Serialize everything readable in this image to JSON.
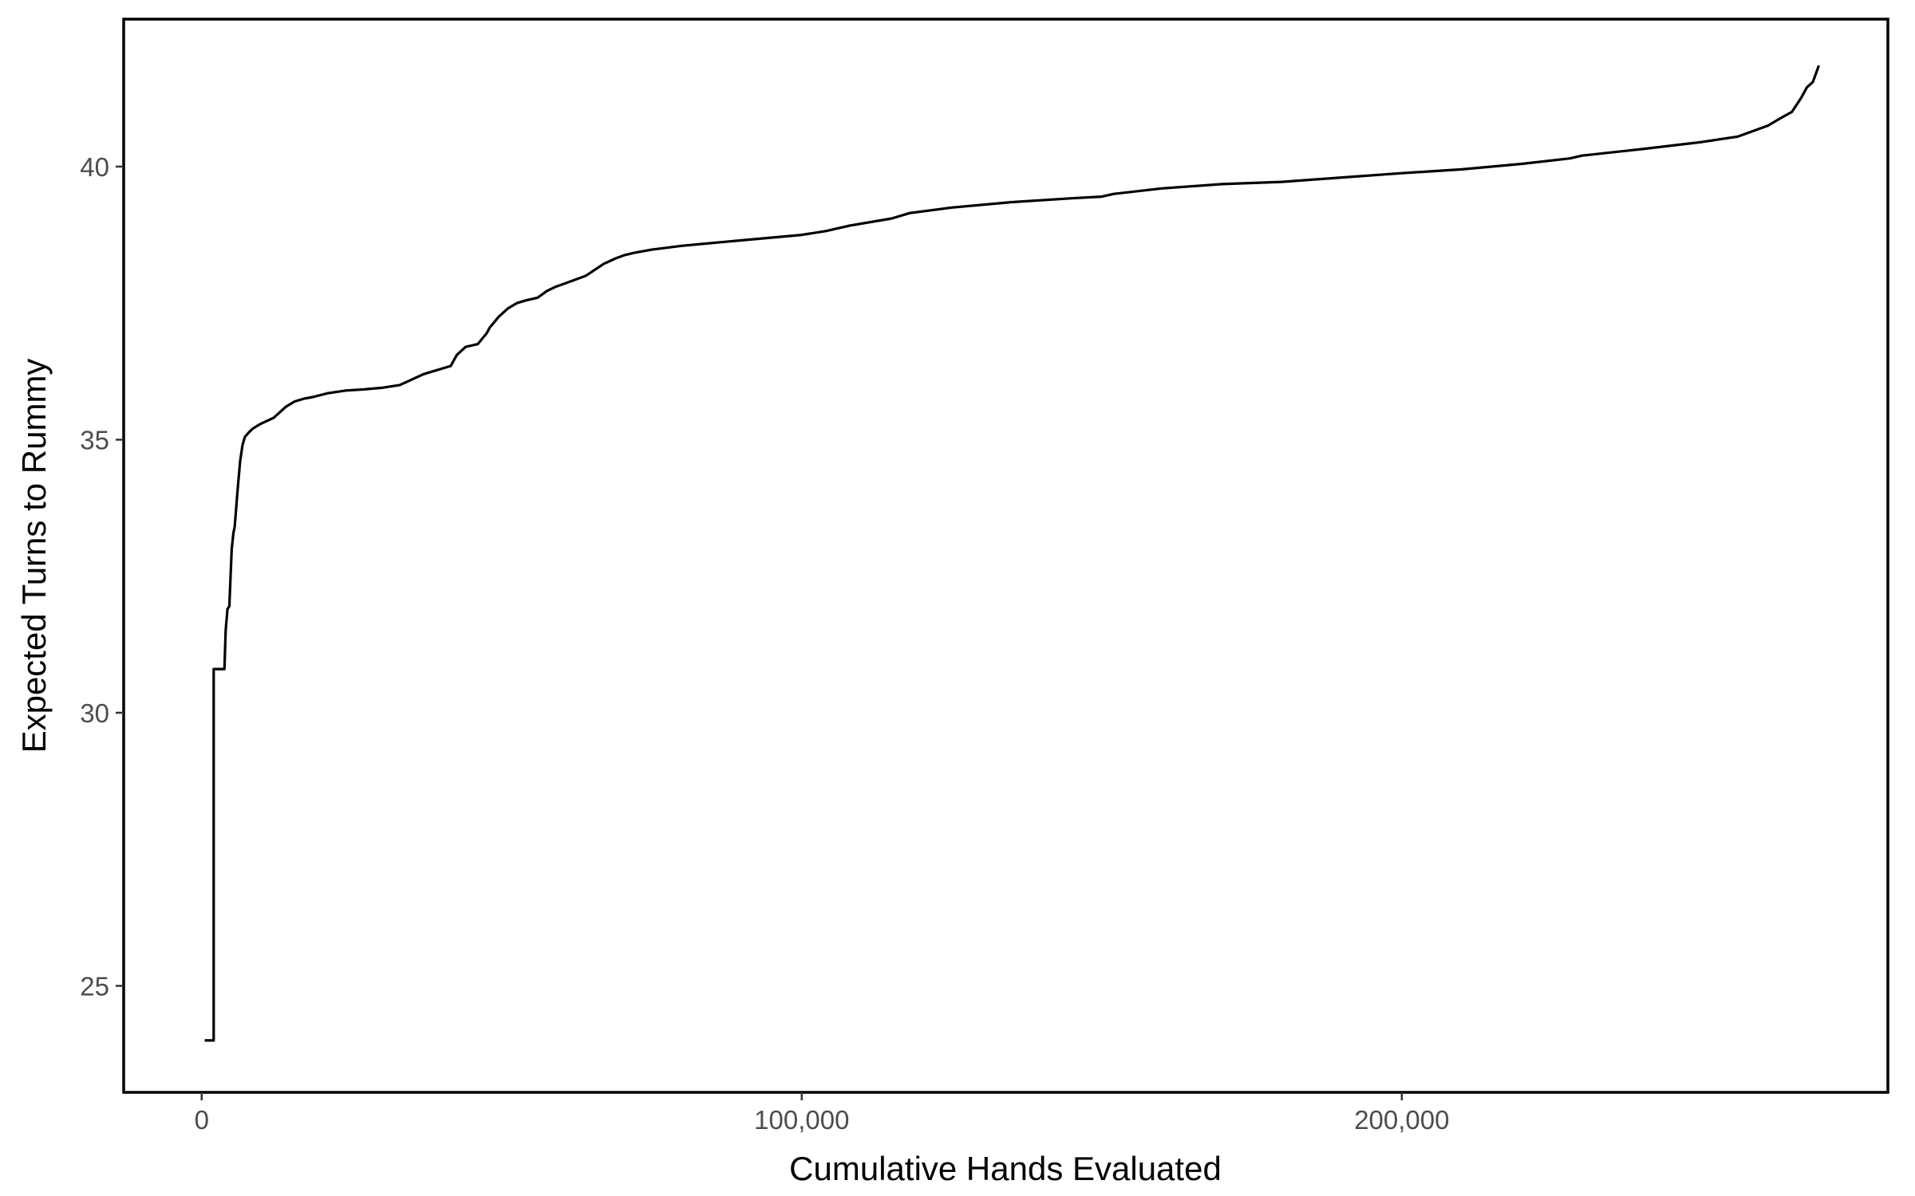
{
  "chart_data": {
    "type": "line",
    "line_style": "step",
    "title": "",
    "xlabel": "Cumulative Hands Evaluated",
    "ylabel": "Expected Turns to Rummy",
    "xlim": [
      -13000,
      281000
    ],
    "ylim": [
      23.05,
      42.7
    ],
    "x_ticks": [
      0,
      100000,
      200000
    ],
    "x_tick_labels": [
      "0",
      "100,000",
      "200,000"
    ],
    "y_ticks": [
      25,
      30,
      35,
      40
    ],
    "y_tick_labels": [
      "25",
      "30",
      "35",
      "40"
    ],
    "grid": false,
    "legend": "none",
    "line_color": "#000000",
    "series": [
      {
        "x": [
          500,
          2000,
          2001,
          3800,
          4000,
          4300,
          4600,
          5000,
          5300,
          5500,
          6000,
          6400,
          6800,
          7200,
          7600,
          8000,
          8500,
          9200,
          10000,
          12000,
          14000,
          15500,
          17000,
          18500,
          21000,
          24000,
          27000,
          30000,
          33000,
          35000,
          37000,
          38500,
          40000,
          41500,
          42500,
          43000,
          44000,
          46000,
          47500,
          48000,
          49500,
          51000,
          52500,
          54000,
          56000,
          57500,
          59000,
          61000,
          64000,
          67000,
          69000,
          70500,
          72000,
          75000,
          80000,
          85000,
          90000,
          95000,
          100000,
          104000,
          108000,
          115000,
          118000,
          125000,
          135000,
          145000,
          150000,
          152000,
          160000,
          170000,
          180000,
          190000,
          200000,
          210000,
          220000,
          228000,
          230000,
          240000,
          250000,
          253000,
          256000,
          261000,
          263000,
          265000,
          266500,
          267500,
          268500,
          269500
        ],
        "y": [
          24.0,
          24.0,
          30.8,
          30.8,
          31.5,
          31.9,
          31.95,
          33.0,
          33.3,
          33.4,
          34.1,
          34.6,
          34.9,
          35.05,
          35.1,
          35.15,
          35.2,
          35.25,
          35.3,
          35.4,
          35.6,
          35.7,
          35.75,
          35.78,
          35.85,
          35.9,
          35.92,
          35.95,
          36.0,
          36.1,
          36.2,
          36.25,
          36.3,
          36.35,
          36.55,
          36.6,
          36.7,
          36.75,
          36.95,
          37.05,
          37.25,
          37.4,
          37.5,
          37.55,
          37.6,
          37.72,
          37.8,
          37.88,
          38.0,
          38.22,
          38.32,
          38.38,
          38.42,
          38.48,
          38.55,
          38.6,
          38.65,
          38.7,
          38.75,
          38.82,
          38.92,
          39.05,
          39.15,
          39.25,
          39.35,
          39.42,
          39.45,
          39.5,
          39.6,
          39.68,
          39.72,
          39.8,
          39.88,
          39.95,
          40.05,
          40.15,
          40.2,
          40.32,
          40.45,
          40.5,
          40.55,
          40.75,
          40.88,
          41.0,
          41.25,
          41.45,
          41.55,
          41.85
        ]
      }
    ]
  }
}
